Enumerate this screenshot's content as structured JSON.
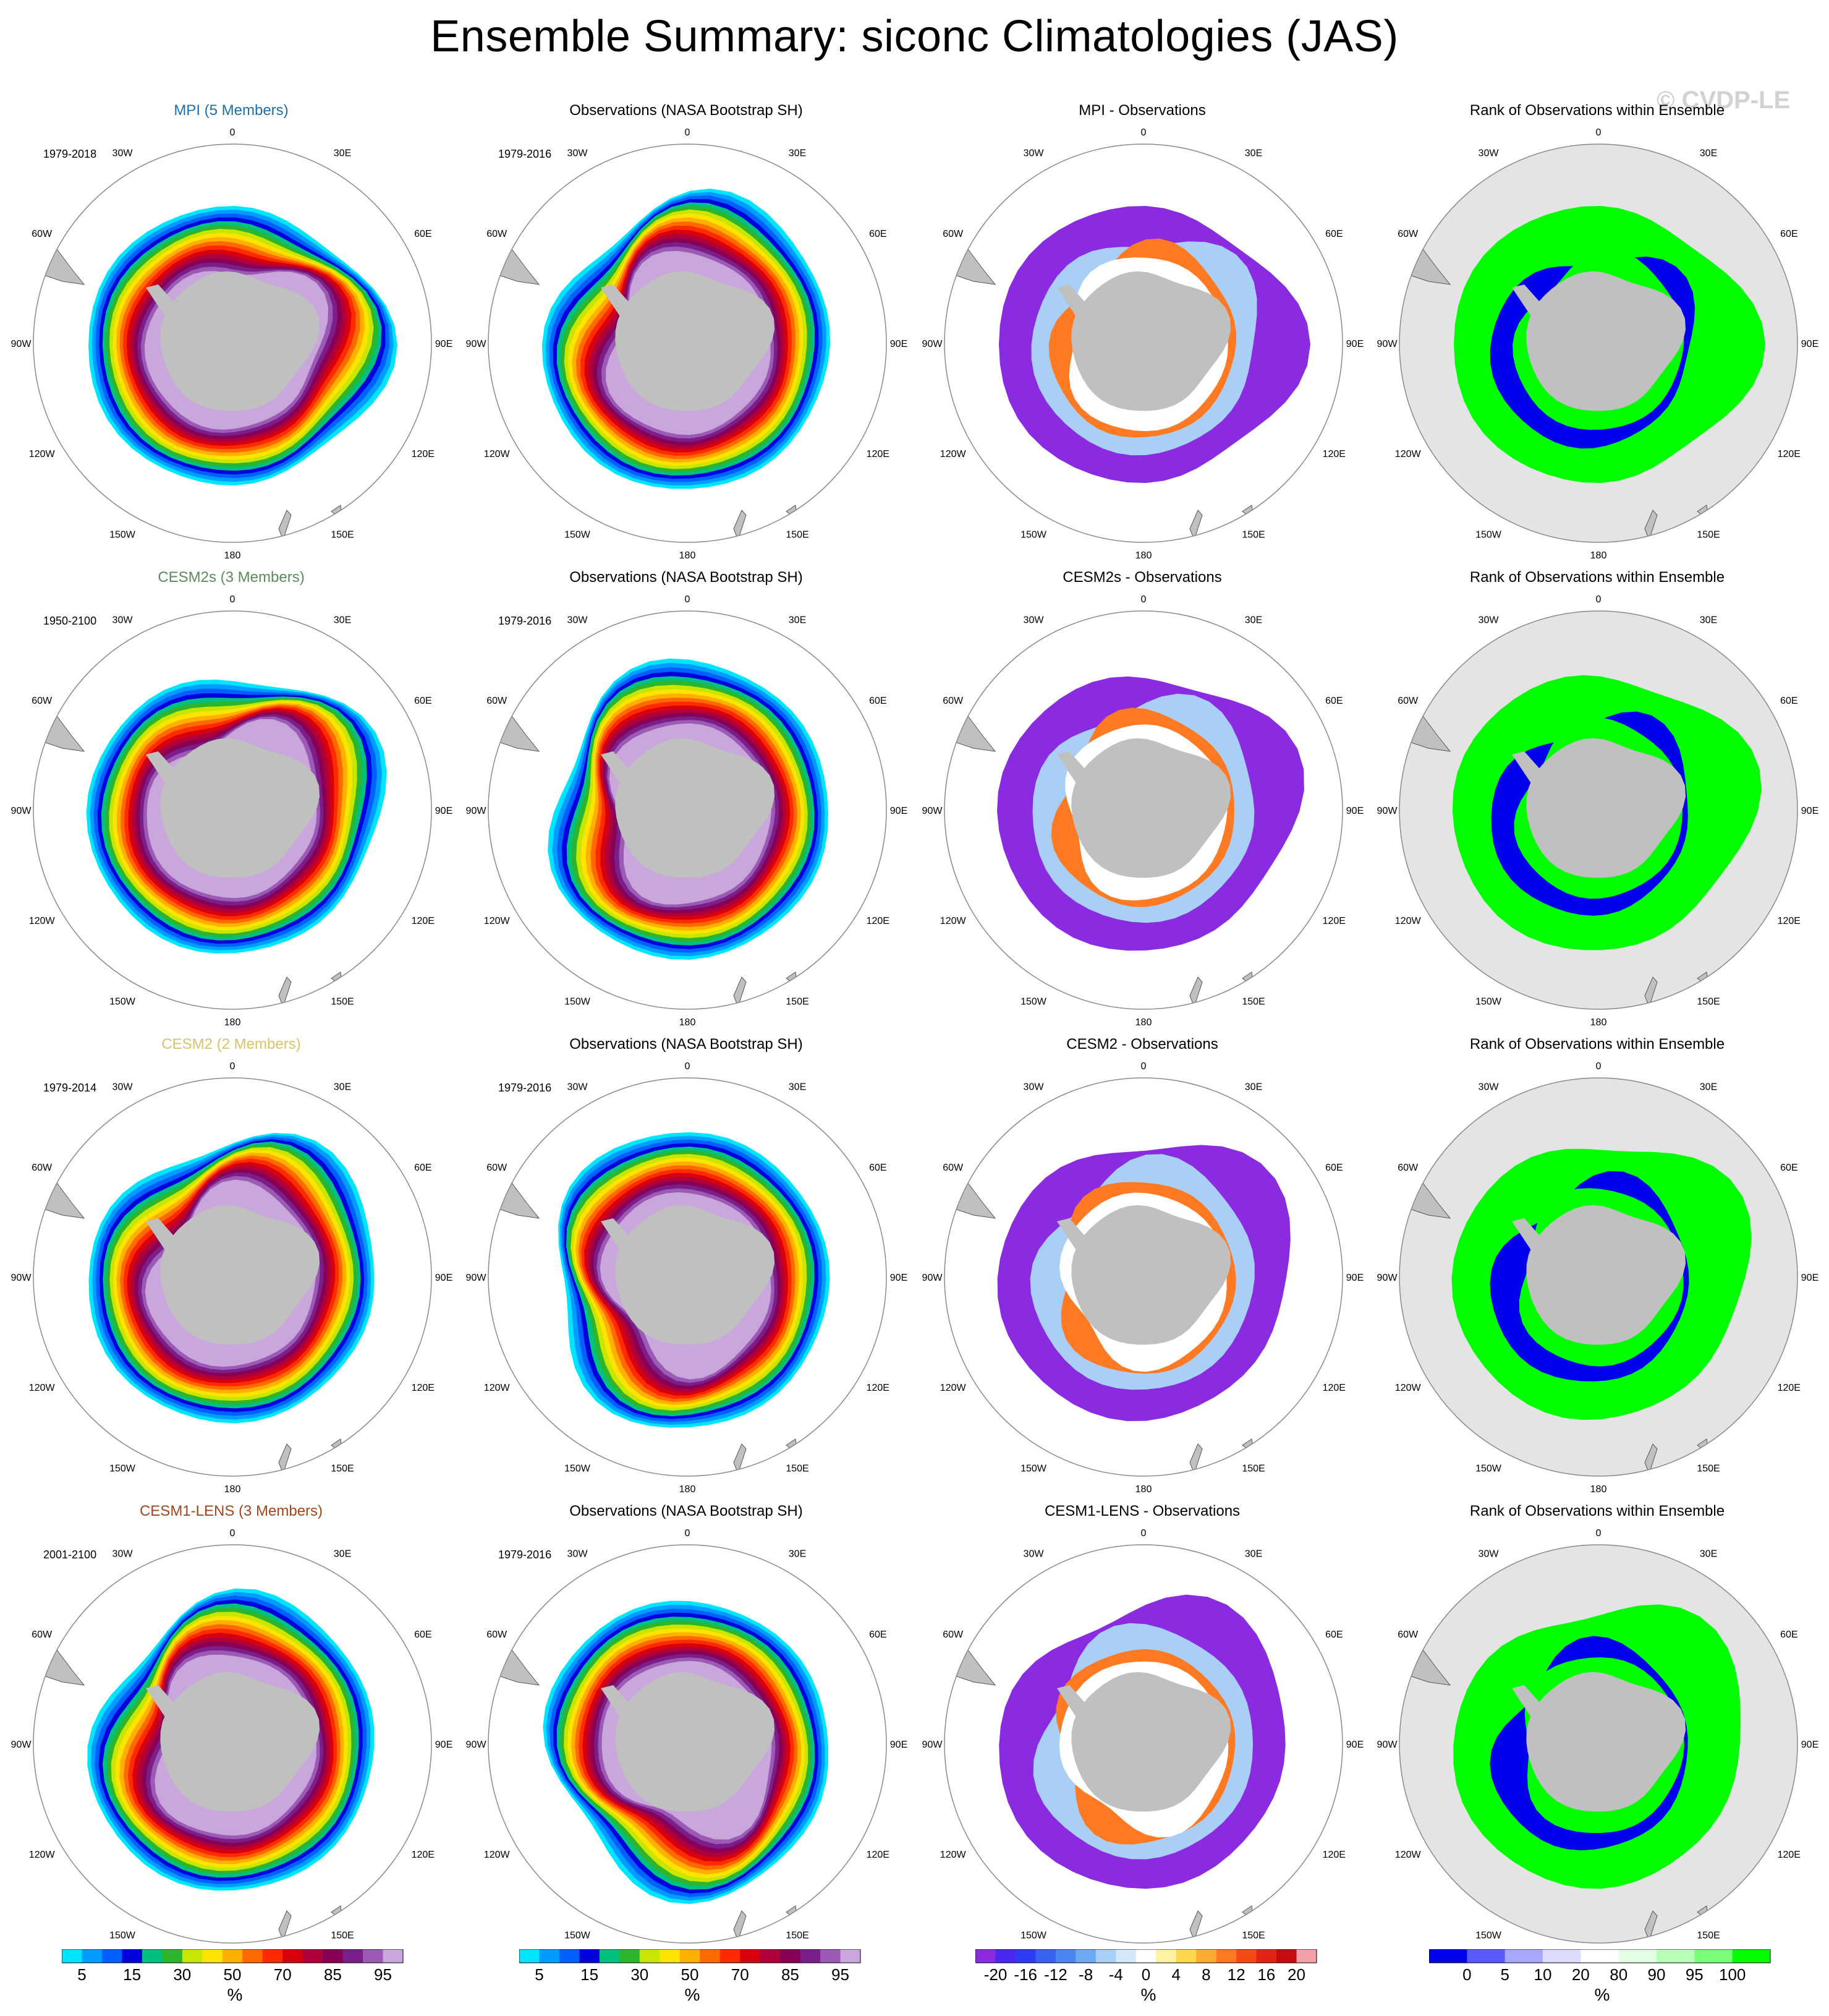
{
  "title": "Ensemble Summary: siconc Climatologies (JAS)",
  "watermark": "© CVDP-LE",
  "colors": {
    "land": "#c0c0c0",
    "rank_background": "#e4e4e4",
    "rank_high": "#00ff00",
    "rank_low": "#0000ee",
    "diff_negative": "#8a2be2",
    "model_title_mpi": "#1f6fa6",
    "model_title_cesm2s": "#5b8c5a",
    "model_title_cesm2": "#d8c36a",
    "model_title_cesm1lens": "#a0471e"
  },
  "longitude_labels": [
    "0",
    "30E",
    "60E",
    "90E",
    "120E",
    "150E",
    "180",
    "150W",
    "120W",
    "90W",
    "60W",
    "30W"
  ],
  "rows": [
    {
      "model": {
        "title": "MPI (5 Members)",
        "period": "1979-2018",
        "title_color": "#1f6fa6"
      },
      "observation": {
        "title": "Observations (NASA Bootstrap SH)",
        "period": "1979-2016"
      },
      "difference": {
        "title": "MPI - Observations"
      },
      "rank": {
        "title": "Rank of Observations within Ensemble"
      }
    },
    {
      "model": {
        "title": "CESM2s (3 Members)",
        "period": "1950-2100",
        "title_color": "#5b8c5a"
      },
      "observation": {
        "title": "Observations (NASA Bootstrap SH)",
        "period": "1979-2016"
      },
      "difference": {
        "title": "CESM2s - Observations"
      },
      "rank": {
        "title": "Rank of Observations within Ensemble"
      }
    },
    {
      "model": {
        "title": "CESM2 (2 Members)",
        "period": "1979-2014",
        "title_color": "#d8c36a"
      },
      "observation": {
        "title": "Observations (NASA Bootstrap SH)",
        "period": "1979-2016"
      },
      "difference": {
        "title": "CESM2 - Observations"
      },
      "rank": {
        "title": "Rank of Observations within Ensemble"
      }
    },
    {
      "model": {
        "title": "CESM1-LENS (3 Members)",
        "period": "2001-2100",
        "title_color": "#a0471e"
      },
      "observation": {
        "title": "Observations (NASA Bootstrap SH)",
        "period": "1979-2016"
      },
      "difference": {
        "title": "CESM1-LENS - Observations"
      },
      "rank": {
        "title": "Rank of Observations within Ensemble"
      }
    }
  ],
  "colorbars": [
    {
      "name": "concentration",
      "unit": "%",
      "ticks": [
        "5",
        "15",
        "30",
        "50",
        "70",
        "85",
        "95"
      ],
      "colors": [
        "#00e5ff",
        "#009cff",
        "#0060ff",
        "#0000dd",
        "#00c080",
        "#2db52d",
        "#c8e600",
        "#ffe400",
        "#ffb000",
        "#ff6a00",
        "#ff2a00",
        "#d7000f",
        "#b0003a",
        "#870055",
        "#7a1f8a",
        "#9c5ab5",
        "#c9a6dc"
      ]
    },
    {
      "name": "concentration",
      "unit": "%",
      "ticks": [
        "5",
        "15",
        "30",
        "50",
        "70",
        "85",
        "95"
      ],
      "colors": [
        "#00e5ff",
        "#009cff",
        "#0060ff",
        "#0000dd",
        "#00c080",
        "#2db52d",
        "#c8e600",
        "#ffe400",
        "#ffb000",
        "#ff6a00",
        "#ff2a00",
        "#d7000f",
        "#b0003a",
        "#870055",
        "#7a1f8a",
        "#9c5ab5",
        "#c9a6dc"
      ]
    },
    {
      "name": "difference",
      "unit": "%",
      "ticks": [
        "-20",
        "-16",
        "-12",
        "-8",
        "-4",
        "0",
        "4",
        "8",
        "12",
        "16",
        "20"
      ],
      "colors": [
        "#8a2be2",
        "#4b28f0",
        "#2c3df5",
        "#3a62f2",
        "#4b86f0",
        "#6fa8f3",
        "#a9cff7",
        "#d4e8fa",
        "#ffffff",
        "#fff2a0",
        "#ffd84d",
        "#ffaa33",
        "#ff7a22",
        "#f44a16",
        "#e02416",
        "#c40c12",
        "#f4a0a8"
      ]
    },
    {
      "name": "rank",
      "unit": "%",
      "ticks": [
        "0",
        "5",
        "10",
        "20",
        "80",
        "90",
        "95",
        "100"
      ],
      "colors": [
        "#0000ee",
        "#5a5aff",
        "#a8a8ff",
        "#dcdcff",
        "#ffffff",
        "#e4ffe4",
        "#b8ffb8",
        "#7aff7a",
        "#00ff00"
      ]
    }
  ]
}
